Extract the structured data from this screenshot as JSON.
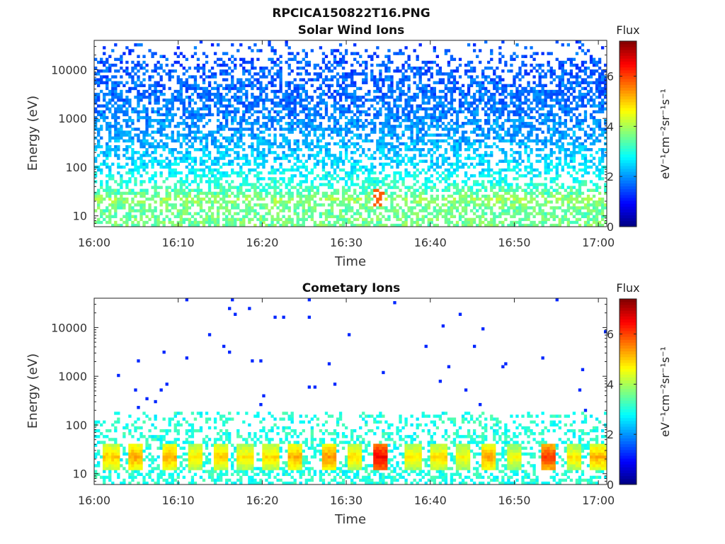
{
  "figure": {
    "title": "RPCICA150822T16.PNG"
  },
  "chart_data": [
    {
      "type": "heatmap",
      "title": "Solar Wind Ions",
      "xlabel": "Time",
      "ylabel": "Energy (eV)",
      "x_ticks": [
        "16:00",
        "16:10",
        "16:20",
        "16:30",
        "16:40",
        "16:50",
        "17:00"
      ],
      "x_range": [
        "16:00",
        "17:01"
      ],
      "y_scale": "log",
      "y_ticks": [
        10,
        100,
        1000,
        10000
      ],
      "y_tick_labels": [
        "10",
        "100",
        "1000",
        "10000"
      ],
      "y_range": [
        6,
        40000
      ],
      "colorbar": {
        "title": "Flux",
        "label": "eV⁻¹cm⁻²sr⁻¹s⁻¹",
        "ticks": [
          0,
          2,
          4,
          6
        ],
        "range": [
          0,
          7.4
        ],
        "colormap": "jet"
      },
      "description_of_values": "Dense scattered counts ~2-3 at 500-10000 eV, flux 3-4 at 10-100 eV, peak ~6 near 16:34 at ~25 eV",
      "flux_profile_energy_eV": [
        8,
        12,
        16,
        22,
        30,
        50,
        100,
        300,
        1000,
        3000,
        10000,
        30000
      ],
      "flux_profile_typical": [
        3.6,
        3.5,
        3.6,
        3.9,
        3.4,
        3.0,
        2.6,
        2.2,
        1.9,
        1.7,
        1.6,
        1.5
      ],
      "flux_profile_occupancy": [
        0.6,
        0.55,
        0.55,
        0.6,
        0.55,
        0.45,
        0.45,
        0.55,
        0.6,
        0.6,
        0.45,
        0.08
      ]
    },
    {
      "type": "heatmap",
      "title": "Cometary Ions",
      "xlabel": "Time",
      "ylabel": "Energy (eV)",
      "x_ticks": [
        "16:00",
        "16:10",
        "16:20",
        "16:30",
        "16:40",
        "16:50",
        "17:00"
      ],
      "x_range": [
        "16:00",
        "17:01"
      ],
      "y_scale": "log",
      "y_ticks": [
        10,
        100,
        1000,
        10000
      ],
      "y_tick_labels": [
        "10",
        "100",
        "1000",
        "10000"
      ],
      "y_range": [
        6,
        40000
      ],
      "colorbar": {
        "title": "Flux",
        "label": "eV⁻¹cm⁻²sr⁻¹s⁻¹",
        "ticks": [
          0,
          2,
          4,
          6
        ],
        "range": [
          0,
          7.4
        ],
        "colormap": "jet"
      },
      "burst_times": [
        "16:02",
        "16:05",
        "16:09",
        "16:12",
        "16:15",
        "16:18",
        "16:21",
        "16:24",
        "16:28",
        "16:31",
        "16:34",
        "16:38",
        "16:41",
        "16:44",
        "16:47",
        "16:50",
        "16:54",
        "16:57",
        "17:00"
      ],
      "burst_peak_flux": [
        5.0,
        5.3,
        5.2,
        4.8,
        5.0,
        4.8,
        4.9,
        5.2,
        5.4,
        4.9,
        6.5,
        4.8,
        4.9,
        4.7,
        5.3,
        4.6,
        6.0,
        4.8,
        5.2
      ],
      "burst_energy_range_eV": [
        12,
        40
      ],
      "background_flux_10_to_200_eV": 3.0,
      "sparse_high_energy_flux": 1.2
    }
  ]
}
